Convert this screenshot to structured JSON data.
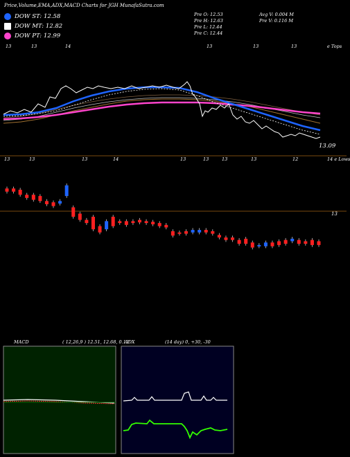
{
  "header": {
    "title": "Price,Volume,EMA,ADX,MACD Charts for JGH MunafaSutra.com"
  },
  "legend": [
    {
      "label": "DOW ST: 12.58",
      "color": "#1e64ff",
      "shape": "circle"
    },
    {
      "label": "DOW MT: 12.82",
      "color": "#ffffff",
      "shape": "square"
    },
    {
      "label": "DOW PT: 12.99",
      "color": "#ff44cc",
      "shape": "circle"
    }
  ],
  "stats": {
    "prev_o": "Pre   O: 12.53",
    "prev_h": "Pre   H: 12.63",
    "prev_l": "Pre   L: 12.44",
    "prev_c": "Pre   C: 12.44",
    "avg_v": "Avg V: 0.004   M",
    "pre_v": "Pre   V: 0.116   M"
  },
  "ema_panel": {
    "top_ticks": [
      "13",
      "13",
      "14",
      "13",
      "13",
      "13"
    ],
    "top_right_label": "e Tops",
    "last_price_label": "13.09",
    "bottom_ticks": [
      "13",
      "13",
      "13",
      "14",
      "13",
      "13",
      "13",
      "13",
      "12"
    ],
    "bottom_right_label": "14 e Lows"
  },
  "candle_panel": {
    "price_label": "13"
  },
  "macd": {
    "title": "MACD",
    "params": "( 12,26,9 ) 12.51,  12.68,  0.12"
  },
  "adx": {
    "title": "ADX",
    "params": "(14  day) 0,  +30,  -30"
  },
  "colors": {
    "ema_fast": "#1e64ff",
    "ema_slow": "#ff44cc",
    "price": "#ffffff",
    "up_candle": "#1e64ff",
    "down_candle": "#ff2020",
    "macd_bg": "#002200",
    "adx_bg": "#000022",
    "adx_line": "#33ff00"
  },
  "chart_data": {
    "type": "line",
    "title": "Price,Volume,EMA,ADX,MACD Charts for JGH MunafaSutra.com",
    "series": [
      {
        "name": "DOW ST",
        "values": [
          12.58
        ]
      },
      {
        "name": "DOW MT",
        "values": [
          12.82
        ]
      },
      {
        "name": "DOW PT",
        "values": [
          12.99
        ]
      }
    ],
    "candles": [
      {
        "o": 13.5,
        "c": 13.45
      },
      {
        "o": 13.5,
        "c": 13.45
      },
      {
        "o": 13.48,
        "c": 13.4
      },
      {
        "o": 13.4,
        "c": 13.35
      },
      {
        "o": 13.4,
        "c": 13.32
      },
      {
        "o": 13.38,
        "c": 13.3
      },
      {
        "o": 13.3,
        "c": 13.25
      },
      {
        "o": 13.28,
        "c": 13.22
      },
      {
        "o": 13.26,
        "c": 13.3
      },
      {
        "o": 13.38,
        "c": 13.55
      },
      {
        "o": 13.2,
        "c": 13.05
      },
      {
        "o": 13.1,
        "c": 13.0
      },
      {
        "o": 13.0,
        "c": 12.95
      },
      {
        "o": 13.05,
        "c": 12.85
      },
      {
        "o": 12.9,
        "c": 12.8
      },
      {
        "o": 12.85,
        "c": 12.98
      },
      {
        "o": 13.05,
        "c": 12.9
      },
      {
        "o": 12.98,
        "c": 12.95
      },
      {
        "o": 12.98,
        "c": 12.92
      },
      {
        "o": 12.98,
        "c": 12.95
      },
      {
        "o": 13.0,
        "c": 12.96
      },
      {
        "o": 12.98,
        "c": 12.95
      },
      {
        "o": 12.97,
        "c": 12.93
      },
      {
        "o": 12.95,
        "c": 12.9
      },
      {
        "o": 12.92,
        "c": 12.88
      },
      {
        "o": 12.82,
        "c": 12.75
      },
      {
        "o": 12.8,
        "c": 12.78
      },
      {
        "o": 12.82,
        "c": 12.78
      },
      {
        "o": 12.8,
        "c": 12.84
      },
      {
        "o": 12.8,
        "c": 12.84
      },
      {
        "o": 12.84,
        "c": 12.8
      },
      {
        "o": 12.82,
        "c": 12.78
      },
      {
        "o": 12.76,
        "c": 12.72
      },
      {
        "o": 12.72,
        "c": 12.68
      },
      {
        "o": 12.72,
        "c": 12.68
      },
      {
        "o": 12.68,
        "c": 12.62
      },
      {
        "o": 12.7,
        "c": 12.62
      },
      {
        "o": 12.64,
        "c": 12.56
      },
      {
        "o": 12.58,
        "c": 12.6
      },
      {
        "o": 12.58,
        "c": 12.64
      },
      {
        "o": 12.64,
        "c": 12.58
      },
      {
        "o": 12.66,
        "c": 12.6
      },
      {
        "o": 12.68,
        "c": 12.62
      },
      {
        "o": 12.66,
        "c": 12.7
      },
      {
        "o": 12.68,
        "c": 12.62
      },
      {
        "o": 12.66,
        "c": 12.62
      },
      {
        "o": 12.68,
        "c": 12.6
      },
      {
        "o": 12.66,
        "c": 12.6
      }
    ],
    "xlabel": "",
    "ylabel": ""
  }
}
